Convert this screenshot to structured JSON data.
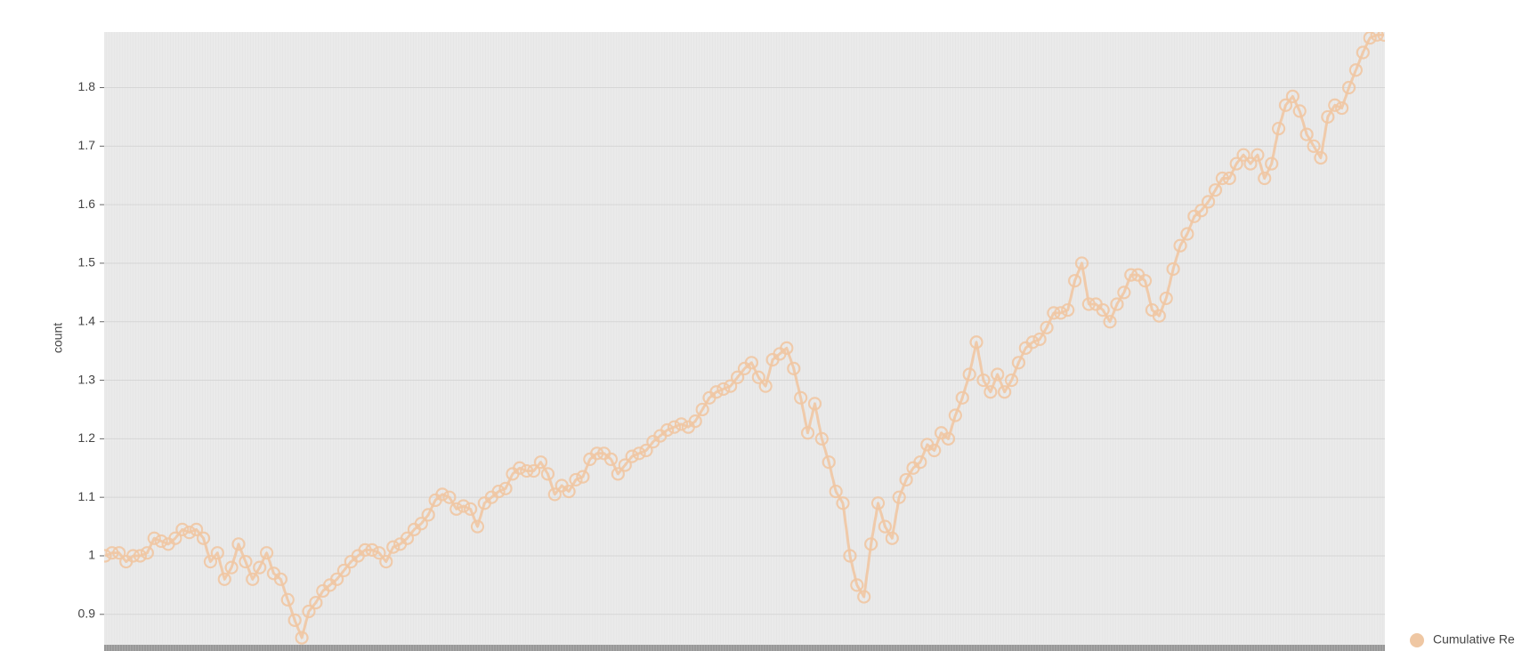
{
  "chart_data": {
    "type": "line",
    "y_label": "count",
    "ylim": [
      0.848,
      1.895
    ],
    "yticks": [
      0.9,
      1,
      1.1,
      1.2,
      1.3,
      1.4,
      1.5,
      1.6,
      1.7,
      1.8
    ],
    "grid": true,
    "legend": "bottom-right",
    "series": [
      {
        "name": "Cumulative Re",
        "color": "#efc7a3",
        "values": [
          1.0,
          1.005,
          1.005,
          0.99,
          1.0,
          1.0,
          1.005,
          1.03,
          1.025,
          1.02,
          1.03,
          1.045,
          1.04,
          1.045,
          1.03,
          0.99,
          1.005,
          0.96,
          0.98,
          1.02,
          0.99,
          0.96,
          0.98,
          1.005,
          0.97,
          0.96,
          0.925,
          0.89,
          0.86,
          0.905,
          0.92,
          0.94,
          0.95,
          0.96,
          0.975,
          0.99,
          1.0,
          1.01,
          1.01,
          1.005,
          0.99,
          1.015,
          1.02,
          1.03,
          1.045,
          1.055,
          1.07,
          1.095,
          1.105,
          1.1,
          1.08,
          1.085,
          1.08,
          1.05,
          1.09,
          1.1,
          1.11,
          1.115,
          1.14,
          1.15,
          1.145,
          1.145,
          1.16,
          1.14,
          1.105,
          1.12,
          1.11,
          1.13,
          1.135,
          1.165,
          1.175,
          1.175,
          1.165,
          1.14,
          1.155,
          1.17,
          1.175,
          1.18,
          1.195,
          1.205,
          1.215,
          1.22,
          1.225,
          1.22,
          1.23,
          1.25,
          1.27,
          1.28,
          1.285,
          1.29,
          1.305,
          1.32,
          1.33,
          1.305,
          1.29,
          1.335,
          1.345,
          1.355,
          1.32,
          1.27,
          1.21,
          1.26,
          1.2,
          1.16,
          1.11,
          1.09,
          1.0,
          0.95,
          0.93,
          1.02,
          1.09,
          1.05,
          1.03,
          1.1,
          1.13,
          1.15,
          1.16,
          1.19,
          1.18,
          1.21,
          1.2,
          1.24,
          1.27,
          1.31,
          1.365,
          1.3,
          1.28,
          1.31,
          1.28,
          1.3,
          1.33,
          1.355,
          1.365,
          1.37,
          1.39,
          1.415,
          1.415,
          1.42,
          1.47,
          1.5,
          1.43,
          1.43,
          1.42,
          1.4,
          1.43,
          1.45,
          1.48,
          1.48,
          1.47,
          1.42,
          1.41,
          1.44,
          1.49,
          1.53,
          1.55,
          1.58,
          1.59,
          1.605,
          1.625,
          1.645,
          1.645,
          1.67,
          1.685,
          1.67,
          1.685,
          1.645,
          1.67,
          1.73,
          1.77,
          1.785,
          1.76,
          1.72,
          1.7,
          1.68,
          1.75,
          1.77,
          1.765,
          1.8,
          1.83,
          1.86,
          1.885,
          1.89,
          1.89
        ]
      }
    ]
  }
}
